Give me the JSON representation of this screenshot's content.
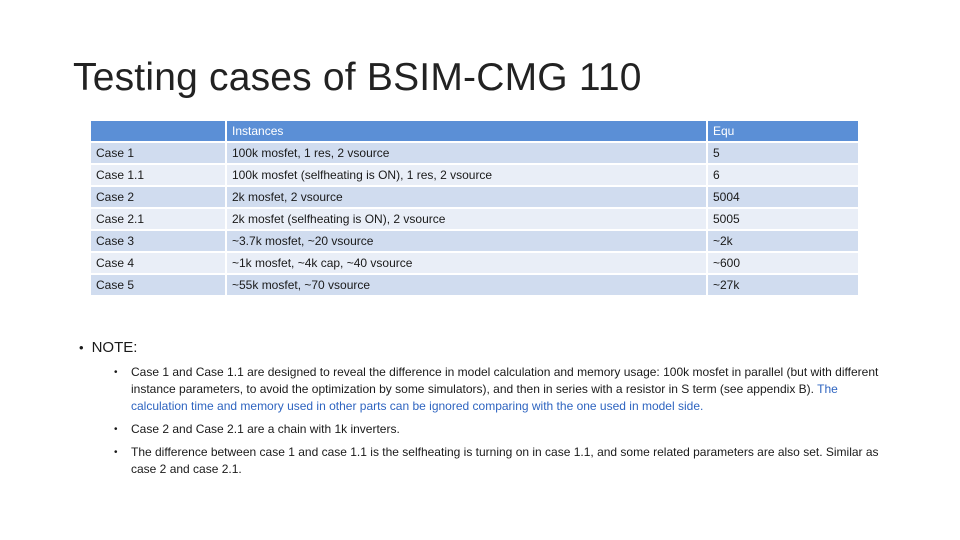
{
  "title": "Testing cases of BSIM-CMG 110",
  "table": {
    "headers": [
      "",
      "Instances",
      "Equ"
    ],
    "rows": [
      {
        "case": "Case 1",
        "instances": "100k mosfet, 1 res, 2 vsource",
        "equ": "5"
      },
      {
        "case": "Case 1.1",
        "instances": "100k mosfet (selfheating is ON), 1 res, 2 vsource",
        "equ": "6"
      },
      {
        "case": "Case 2",
        "instances": "2k mosfet, 2 vsource",
        "equ": "5004"
      },
      {
        "case": "Case 2.1",
        "instances": "2k mosfet (selfheating is ON), 2 vsource",
        "equ": "5005"
      },
      {
        "case": "Case 3",
        "instances": "~3.7k mosfet, ~20 vsource",
        "equ": "~2k"
      },
      {
        "case": "Case 4",
        "instances": "~1k mosfet, ~4k cap, ~40 vsource",
        "equ": "~600"
      },
      {
        "case": "Case 5",
        "instances": "~55k mosfet, ~70 vsource",
        "equ": "~27k"
      }
    ]
  },
  "notes": {
    "heading": "NOTE:",
    "items": [
      {
        "text": "Case 1 and Case 1.1 are designed to reveal the difference in model calculation and memory usage: 100k mosfet in parallel (but with different instance parameters, to avoid the optimization by some simulators), and then in series with a resistor in S term (see appendix B). ",
        "highlight": "The calculation time and memory used in other parts can be ignored comparing with the one used in model side."
      },
      {
        "text": "Case 2 and Case 2.1 are a chain with 1k inverters.",
        "highlight": ""
      },
      {
        "text": "The difference between case 1 and case 1.1 is the selfheating is turning on in case 1.1, and some related parameters are also set. Similar as case 2 and case 2.1.",
        "highlight": ""
      }
    ]
  },
  "colors": {
    "header_bg": "#5b8fd6",
    "row_dark": "#d0dcef",
    "row_light": "#e9eef7",
    "highlight_text": "#2e64c0"
  }
}
